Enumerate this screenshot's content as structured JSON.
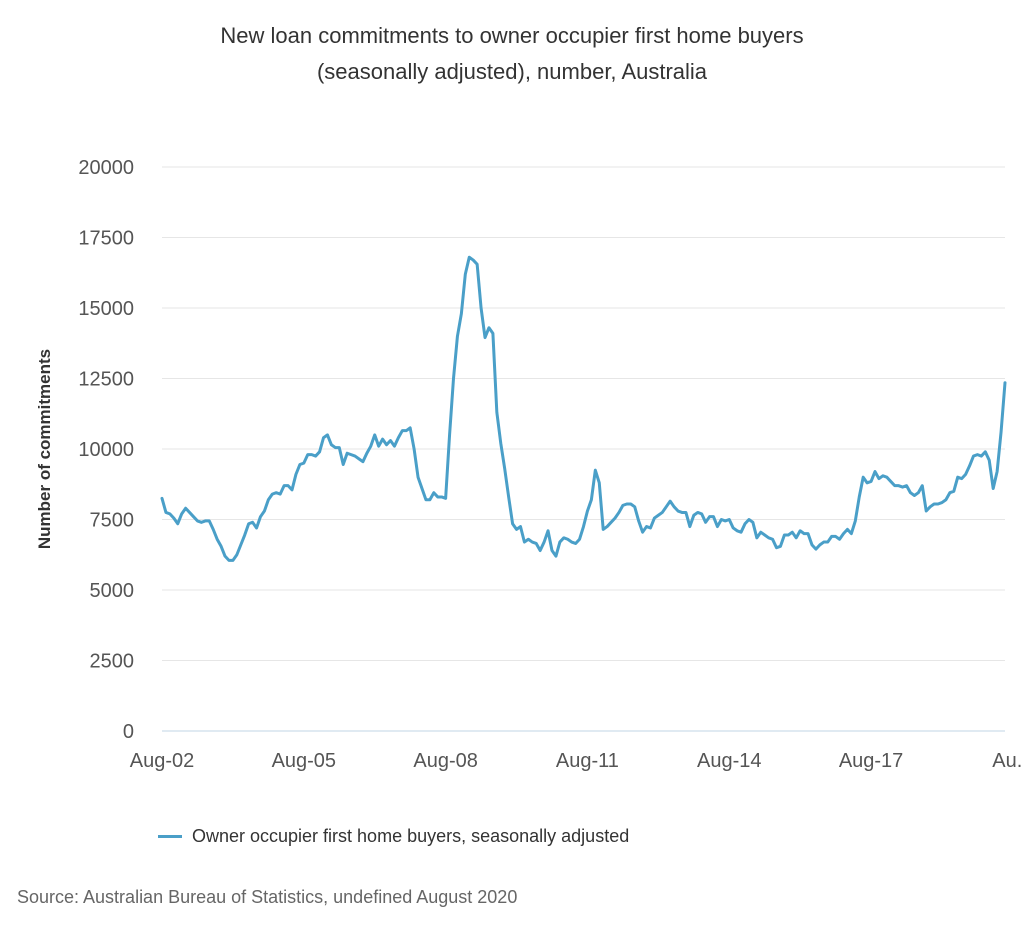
{
  "colors": {
    "series": "#4a9fc8",
    "grid": "#e6e6e6",
    "axis": "#c0d6e4"
  },
  "chart_data": {
    "type": "line",
    "title": "New loan commitments to owner occupier first home buyers",
    "subtitle": "(seasonally adjusted), number, Australia",
    "ylabel": "Number of commitments",
    "xlabel": "",
    "ylim": [
      0,
      20000
    ],
    "yticks": [
      "0",
      "2500",
      "5000",
      "7500",
      "10000",
      "12500",
      "15000",
      "17500",
      "20000"
    ],
    "xticks": [
      "Aug-02",
      "Aug-05",
      "Aug-08",
      "Aug-11",
      "Aug-14",
      "Aug-17",
      "Au..."
    ],
    "x_start": "2002-08",
    "x_end": "2020-08",
    "grid": true,
    "legend_position": "bottom-left",
    "series": [
      {
        "name": "Owner occupier first home buyers, seasonally adjusted",
        "values": [
          8250,
          7750,
          7700,
          7550,
          7350,
          7700,
          7900,
          7750,
          7600,
          7450,
          7400,
          7450,
          7450,
          7150,
          6800,
          6550,
          6200,
          6050,
          6050,
          6250,
          6600,
          6950,
          7350,
          7400,
          7200,
          7600,
          7800,
          8200,
          8400,
          8450,
          8400,
          8700,
          8700,
          8550,
          9100,
          9450,
          9500,
          9800,
          9800,
          9750,
          9900,
          10400,
          10500,
          10150,
          10050,
          10050,
          9450,
          9850,
          9800,
          9750,
          9650,
          9550,
          9850,
          10100,
          10500,
          10100,
          10350,
          10150,
          10300,
          10100,
          10400,
          10650,
          10650,
          10750,
          10000,
          9000,
          8600,
          8200,
          8200,
          8450,
          8300,
          8300,
          8250,
          10500,
          12500,
          14000,
          14800,
          16200,
          16800,
          16700,
          16550,
          15000,
          13950,
          14300,
          14100,
          11300,
          10200,
          9300,
          8300,
          7350,
          7150,
          7250,
          6700,
          6800,
          6700,
          6650,
          6400,
          6700,
          7100,
          6400,
          6200,
          6700,
          6850,
          6800,
          6700,
          6650,
          6800,
          7250,
          7800,
          8200,
          9250,
          8800,
          7150,
          7250,
          7400,
          7550,
          7750,
          8000,
          8050,
          8050,
          7950,
          7450,
          7050,
          7250,
          7200,
          7550,
          7650,
          7750,
          7950,
          8150,
          7950,
          7800,
          7750,
          7750,
          7250,
          7650,
          7750,
          7700,
          7400,
          7600,
          7600,
          7250,
          7500,
          7450,
          7500,
          7200,
          7100,
          7050,
          7350,
          7500,
          7400,
          6850,
          7050,
          6950,
          6850,
          6800,
          6500,
          6550,
          6950,
          6950,
          7050,
          6850,
          7100,
          7000,
          7000,
          6600,
          6450,
          6600,
          6700,
          6700,
          6900,
          6900,
          6800,
          7000,
          7150,
          7000,
          7450,
          8300,
          9000,
          8800,
          8850,
          9200,
          8950,
          9050,
          9000,
          8850,
          8700,
          8700,
          8650,
          8700,
          8450,
          8350,
          8450,
          8700,
          7800,
          7950,
          8050,
          8050,
          8100,
          8200,
          8450,
          8500,
          9000,
          8950,
          9100,
          9400,
          9750,
          9800,
          9750,
          9900,
          9600,
          8600,
          9200,
          10600,
          12350
        ]
      }
    ]
  },
  "legend": {
    "label": "Owner occupier first home buyers, seasonally adjusted"
  },
  "source": "Source: Australian Bureau of Statistics, undefined August 2020"
}
